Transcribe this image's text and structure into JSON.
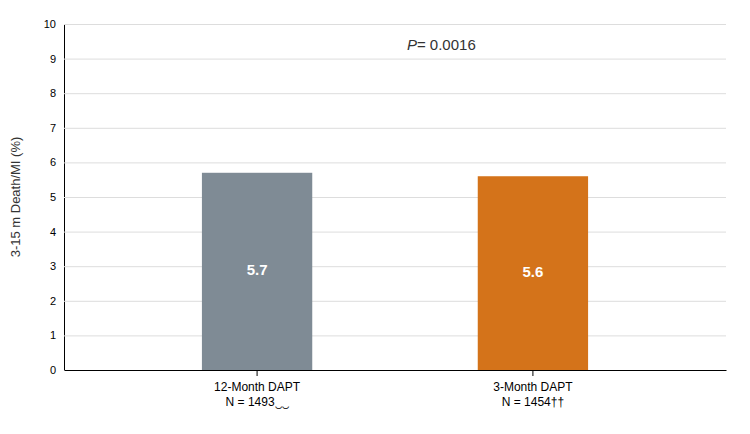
{
  "chart_data": {
    "type": "bar",
    "categories": [
      "12-Month DAPT\nN = 1493‿‿",
      "3-Month DAPT\nN = 1454††"
    ],
    "values": [
      5.7,
      5.6
    ],
    "colors": [
      "#7f8b95",
      "#d4731a"
    ],
    "ylabel": "3-15 m Death/MI (%)",
    "ylim": [
      0,
      10
    ],
    "yticks": [
      0,
      1,
      2,
      3,
      4,
      5,
      6,
      7,
      8,
      9,
      10
    ],
    "annotation": "P= 0.0016",
    "data_labels": true,
    "grid": true
  }
}
